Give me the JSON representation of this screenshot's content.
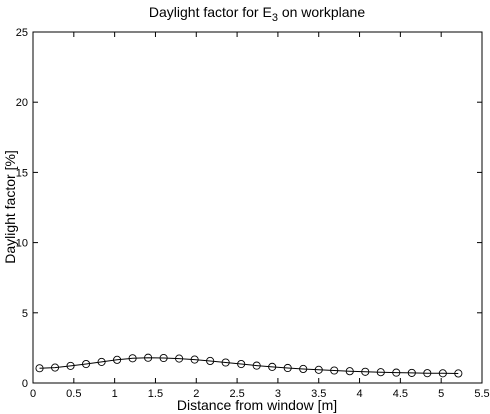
{
  "chart_data": {
    "type": "line",
    "title_main": "Daylight factor for E",
    "title_sub": "3",
    "title_rest": " on workplane",
    "xlabel": "Distance from window [m]",
    "ylabel": "Daylight factor [%]",
    "xlim": [
      0,
      5.5
    ],
    "ylim": [
      0,
      25
    ],
    "xticks": [
      0,
      0.5,
      1,
      1.5,
      2,
      2.5,
      3,
      3.5,
      4,
      4.5,
      5,
      5.5
    ],
    "xtick_labels": [
      "0",
      "0.5",
      "1",
      "1.5",
      "2",
      "2.5",
      "3",
      "3.5",
      "4",
      "4.5",
      "5",
      "5.5"
    ],
    "yticks": [
      0,
      5,
      10,
      15,
      20,
      25
    ],
    "ytick_labels": [
      "0",
      "5",
      "10",
      "15",
      "20",
      "25"
    ],
    "grid": false,
    "marker": "circle",
    "series": [
      {
        "x": [
          0.08,
          0.27,
          0.46,
          0.65,
          0.84,
          1.03,
          1.22,
          1.41,
          1.6,
          1.79,
          1.98,
          2.17,
          2.36,
          2.55,
          2.74,
          2.93,
          3.12,
          3.31,
          3.5,
          3.69,
          3.88,
          4.07,
          4.26,
          4.45,
          4.64,
          4.83,
          5.02,
          5.21
        ],
        "y": [
          1.05,
          1.1,
          1.22,
          1.35,
          1.5,
          1.65,
          1.76,
          1.8,
          1.78,
          1.74,
          1.67,
          1.57,
          1.46,
          1.35,
          1.24,
          1.15,
          1.07,
          1.0,
          0.94,
          0.89,
          0.84,
          0.8,
          0.77,
          0.74,
          0.72,
          0.7,
          0.69,
          0.68
        ]
      }
    ]
  }
}
